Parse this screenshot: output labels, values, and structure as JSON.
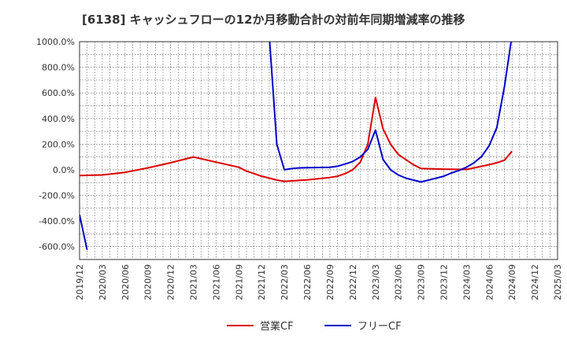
{
  "chart_data": {
    "type": "line",
    "title": "[6138]  キャッシュフローの12か月移動合計の対前年同期増減率の推移",
    "xlabel": "",
    "ylabel": "",
    "ylim": [
      -700,
      1000
    ],
    "xlim": [
      "2019/12",
      "2025/03"
    ],
    "grid": true,
    "legend_position": "bottom-center",
    "y_ticks": [
      1000,
      800,
      600,
      400,
      200,
      0,
      -200,
      -400,
      -600
    ],
    "y_tick_labels": [
      "1000.0%",
      "800.0%",
      "600.0%",
      "400.0%",
      "200.0%",
      "0.0%",
      "-200.0%",
      "-400.0%",
      "-600.0%"
    ],
    "x_tick_labels": [
      "2019/12",
      "2020/03",
      "2020/06",
      "2020/09",
      "2020/12",
      "2021/03",
      "2021/06",
      "2021/09",
      "2021/12",
      "2022/03",
      "2022/06",
      "2022/09",
      "2022/12",
      "2023/03",
      "2023/06",
      "2023/09",
      "2023/12",
      "2024/03",
      "2024/06",
      "2024/09",
      "2024/12",
      "2025/03"
    ],
    "series": [
      {
        "name": "営業CF",
        "color": "#dd0000",
        "points": [
          [
            "2019/12",
            -45
          ],
          [
            "2020/03",
            -40
          ],
          [
            "2020/06",
            -20
          ],
          [
            "2020/09",
            15
          ],
          [
            "2020/12",
            55
          ],
          [
            "2021/03",
            100
          ],
          [
            "2021/06",
            60
          ],
          [
            "2021/09",
            20
          ],
          [
            "2021/10",
            -10
          ],
          [
            "2021/11",
            -30
          ],
          [
            "2021/12",
            -50
          ],
          [
            "2022/01",
            -65
          ],
          [
            "2022/02",
            -80
          ],
          [
            "2022/03",
            -90
          ],
          [
            "2022/06",
            -78
          ],
          [
            "2022/09",
            -60
          ],
          [
            "2022/10",
            -50
          ],
          [
            "2022/11",
            -30
          ],
          [
            "2022/12",
            0
          ],
          [
            "2023/01",
            60
          ],
          [
            "2023/02",
            200
          ],
          [
            "2023/03",
            565
          ],
          [
            "2023/04",
            320
          ],
          [
            "2023/05",
            200
          ],
          [
            "2023/06",
            120
          ],
          [
            "2023/07",
            80
          ],
          [
            "2023/08",
            40
          ],
          [
            "2023/09",
            10
          ],
          [
            "2023/12",
            5
          ],
          [
            "2024/03",
            3
          ],
          [
            "2024/06",
            40
          ],
          [
            "2024/07",
            55
          ],
          [
            "2024/08",
            75
          ],
          [
            "2024/09",
            145
          ]
        ]
      },
      {
        "name": "フリーCF",
        "color": "#0000cc",
        "segments": [
          [
            [
              "2019/12",
              -350
            ],
            [
              "2020/01",
              -625
            ]
          ],
          [
            [
              "2022/01",
              1050
            ],
            [
              "2022/02",
              200
            ],
            [
              "2022/03",
              0
            ],
            [
              "2022/04",
              10
            ],
            [
              "2022/05",
              15
            ],
            [
              "2022/06",
              17
            ],
            [
              "2022/09",
              20
            ],
            [
              "2022/10",
              28
            ],
            [
              "2022/11",
              45
            ],
            [
              "2022/12",
              65
            ],
            [
              "2023/01",
              100
            ],
            [
              "2023/02",
              160
            ],
            [
              "2023/03",
              310
            ],
            [
              "2023/04",
              80
            ],
            [
              "2023/05",
              0
            ],
            [
              "2023/06",
              -40
            ],
            [
              "2023/07",
              -65
            ],
            [
              "2023/08",
              -80
            ],
            [
              "2023/09",
              -95
            ],
            [
              "2023/12",
              -50
            ],
            [
              "2024/01",
              -25
            ],
            [
              "2024/02",
              -5
            ],
            [
              "2024/03",
              20
            ],
            [
              "2024/04",
              55
            ],
            [
              "2024/05",
              105
            ],
            [
              "2024/06",
              190
            ],
            [
              "2024/07",
              330
            ],
            [
              "2024/08",
              650
            ],
            [
              "2024/09",
              1050
            ]
          ]
        ]
      }
    ]
  }
}
